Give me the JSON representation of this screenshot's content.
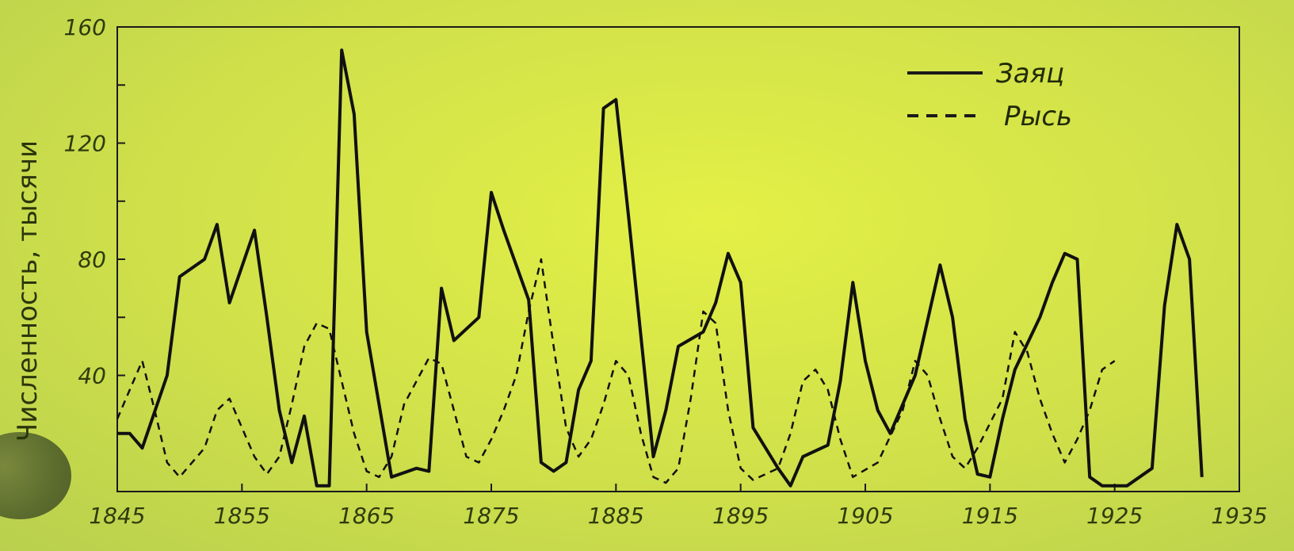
{
  "chart_data": {
    "type": "line",
    "xlabel": "",
    "ylabel": "Численность, тысячи",
    "xlim": [
      1845,
      1935
    ],
    "ylim": [
      0,
      160
    ],
    "x_ticks": [
      "1845",
      "1855",
      "1865",
      "1875",
      "1885",
      "1895",
      "1905",
      "1915",
      "1925",
      "1935"
    ],
    "y_ticks": [
      "40",
      "80",
      "120",
      "160"
    ],
    "legend_position": "top-right",
    "series": [
      {
        "name": "Заяц",
        "style": "solid",
        "color": "#111111",
        "points": [
          [
            1845,
            20
          ],
          [
            1846,
            20
          ],
          [
            1847,
            15
          ],
          [
            1849,
            40
          ],
          [
            1850,
            74
          ],
          [
            1852,
            80
          ],
          [
            1853,
            92
          ],
          [
            1854,
            65
          ],
          [
            1856,
            90
          ],
          [
            1857,
            60
          ],
          [
            1858,
            28
          ],
          [
            1859,
            10
          ],
          [
            1860,
            26
          ],
          [
            1861,
            2
          ],
          [
            1862,
            2
          ],
          [
            1863,
            152
          ],
          [
            1864,
            130
          ],
          [
            1865,
            55
          ],
          [
            1867,
            5
          ],
          [
            1869,
            8
          ],
          [
            1870,
            7
          ],
          [
            1871,
            70
          ],
          [
            1872,
            52
          ],
          [
            1874,
            60
          ],
          [
            1875,
            103
          ],
          [
            1876,
            90
          ],
          [
            1878,
            66
          ],
          [
            1879,
            10
          ],
          [
            1880,
            7
          ],
          [
            1881,
            10
          ],
          [
            1882,
            35
          ],
          [
            1883,
            45
          ],
          [
            1884,
            132
          ],
          [
            1885,
            135
          ],
          [
            1886,
            95
          ],
          [
            1888,
            12
          ],
          [
            1889,
            28
          ],
          [
            1890,
            50
          ],
          [
            1892,
            55
          ],
          [
            1893,
            65
          ],
          [
            1894,
            82
          ],
          [
            1895,
            72
          ],
          [
            1896,
            22
          ],
          [
            1898,
            8
          ],
          [
            1899,
            2
          ],
          [
            1900,
            12
          ],
          [
            1902,
            16
          ],
          [
            1903,
            38
          ],
          [
            1904,
            72
          ],
          [
            1905,
            45
          ],
          [
            1906,
            28
          ],
          [
            1907,
            20
          ],
          [
            1909,
            40
          ],
          [
            1911,
            78
          ],
          [
            1912,
            60
          ],
          [
            1913,
            25
          ],
          [
            1914,
            6
          ],
          [
            1915,
            5
          ],
          [
            1916,
            25
          ],
          [
            1917,
            42
          ],
          [
            1919,
            60
          ],
          [
            1920,
            72
          ],
          [
            1921,
            82
          ],
          [
            1922,
            80
          ],
          [
            1923,
            5
          ],
          [
            1924,
            2
          ],
          [
            1926,
            2
          ],
          [
            1928,
            8
          ],
          [
            1929,
            64
          ],
          [
            1930,
            92
          ],
          [
            1931,
            80
          ],
          [
            1932,
            5
          ]
        ]
      },
      {
        "name": "Рысь",
        "style": "dashed",
        "color": "#111111",
        "points": [
          [
            1845,
            25
          ],
          [
            1846,
            35
          ],
          [
            1847,
            45
          ],
          [
            1848,
            28
          ],
          [
            1849,
            10
          ],
          [
            1850,
            5
          ],
          [
            1852,
            15
          ],
          [
            1853,
            28
          ],
          [
            1854,
            32
          ],
          [
            1855,
            22
          ],
          [
            1856,
            12
          ],
          [
            1857,
            6
          ],
          [
            1858,
            12
          ],
          [
            1859,
            30
          ],
          [
            1860,
            50
          ],
          [
            1861,
            58
          ],
          [
            1862,
            56
          ],
          [
            1863,
            38
          ],
          [
            1864,
            20
          ],
          [
            1865,
            7
          ],
          [
            1866,
            5
          ],
          [
            1867,
            12
          ],
          [
            1868,
            30
          ],
          [
            1869,
            38
          ],
          [
            1870,
            46
          ],
          [
            1871,
            44
          ],
          [
            1872,
            28
          ],
          [
            1873,
            12
          ],
          [
            1874,
            10
          ],
          [
            1875,
            18
          ],
          [
            1876,
            28
          ],
          [
            1877,
            40
          ],
          [
            1878,
            62
          ],
          [
            1879,
            80
          ],
          [
            1880,
            50
          ],
          [
            1881,
            22
          ],
          [
            1882,
            12
          ],
          [
            1883,
            18
          ],
          [
            1884,
            30
          ],
          [
            1885,
            45
          ],
          [
            1886,
            40
          ],
          [
            1887,
            20
          ],
          [
            1888,
            5
          ],
          [
            1889,
            3
          ],
          [
            1890,
            8
          ],
          [
            1891,
            32
          ],
          [
            1892,
            62
          ],
          [
            1893,
            58
          ],
          [
            1894,
            28
          ],
          [
            1895,
            8
          ],
          [
            1896,
            4
          ],
          [
            1898,
            8
          ],
          [
            1899,
            20
          ],
          [
            1900,
            38
          ],
          [
            1901,
            42
          ],
          [
            1902,
            35
          ],
          [
            1903,
            18
          ],
          [
            1904,
            5
          ],
          [
            1906,
            10
          ],
          [
            1908,
            28
          ],
          [
            1909,
            45
          ],
          [
            1910,
            40
          ],
          [
            1911,
            25
          ],
          [
            1912,
            12
          ],
          [
            1913,
            8
          ],
          [
            1914,
            15
          ],
          [
            1916,
            32
          ],
          [
            1917,
            55
          ],
          [
            1918,
            48
          ],
          [
            1919,
            32
          ],
          [
            1920,
            20
          ],
          [
            1921,
            10
          ],
          [
            1922,
            18
          ],
          [
            1923,
            28
          ],
          [
            1924,
            42
          ],
          [
            1925,
            45
          ]
        ]
      }
    ]
  }
}
